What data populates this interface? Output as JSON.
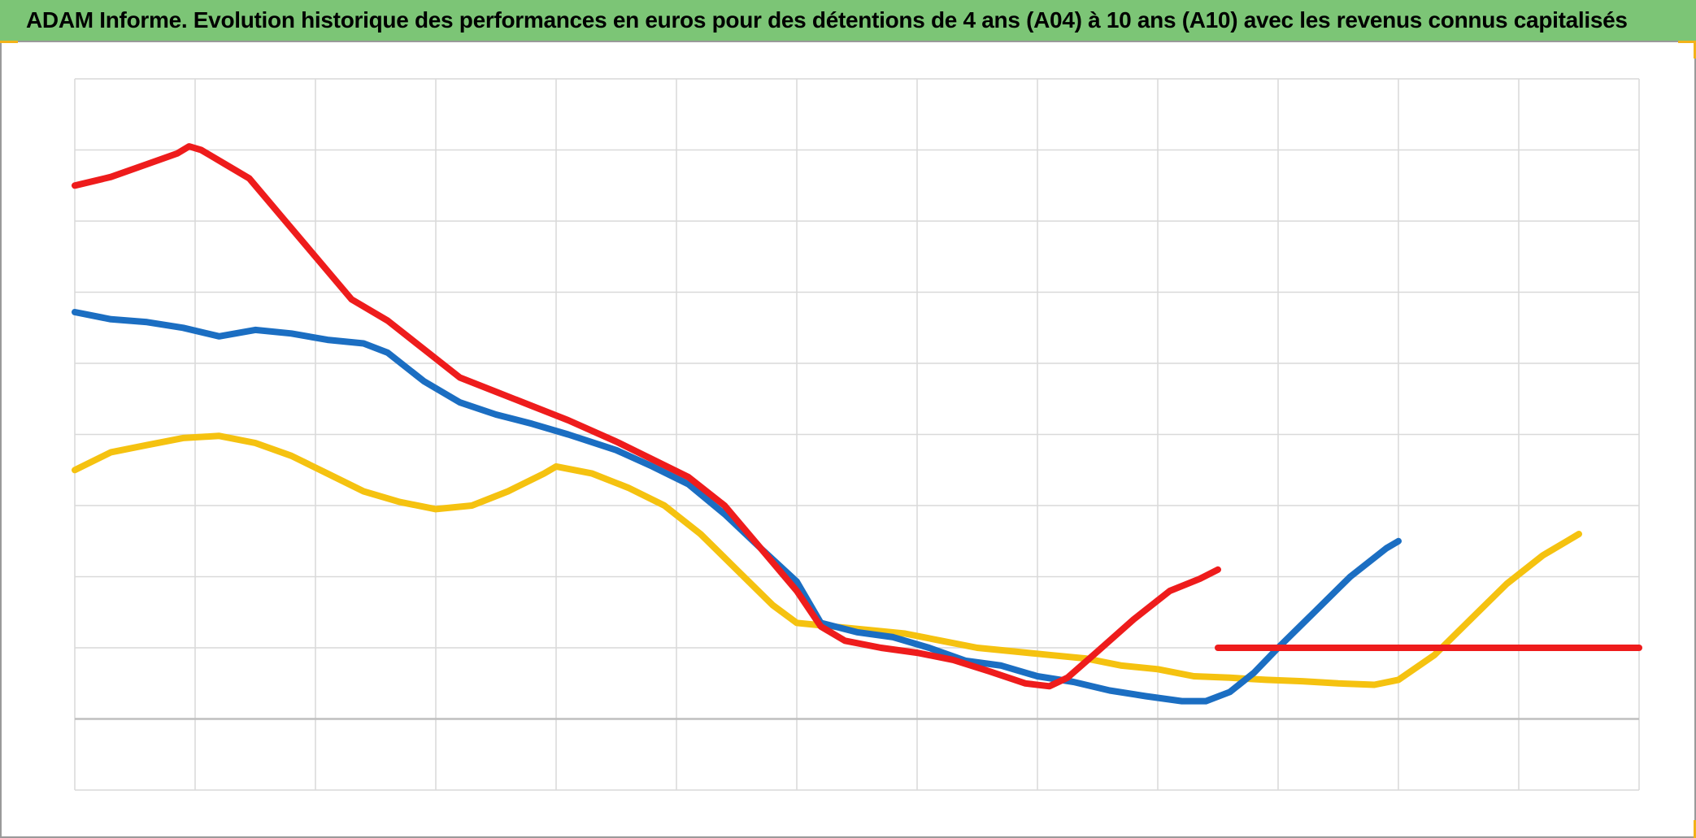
{
  "title": "ADAM Informe. Evolution historique des performances en euros pour des détentions de 4 ans (A04) à 10 ans (A10) avec les revenus connus capitalisés",
  "colors": {
    "title_bg": "#7cc576",
    "corner_accent": "#f2b21a",
    "grid": "#d9d9d9",
    "baseline": "#bfbfbf"
  },
  "chart_data": {
    "type": "line",
    "title": "ADAM Informe. Evolution historique des performances en euros pour des détentions de 4 ans (A04) à 10 ans (A10) avec les revenus connus capitalisés",
    "xlabel": "",
    "ylabel": "",
    "xlim": [
      0,
      13
    ],
    "ylim": [
      -1,
      9
    ],
    "baseline_y": 0,
    "grid": true,
    "tick_labels_visible": false,
    "legend": "none",
    "series": [
      {
        "color": "#ee1c1c",
        "points": [
          [
            0,
            7.5
          ],
          [
            0.3,
            7.62
          ],
          [
            0.6,
            7.8
          ],
          [
            0.85,
            7.95
          ],
          [
            0.95,
            8.05
          ],
          [
            1.05,
            8.0
          ],
          [
            1.25,
            7.8
          ],
          [
            1.45,
            7.6
          ],
          [
            1.7,
            7.1
          ],
          [
            2.0,
            6.5
          ],
          [
            2.3,
            5.9
          ],
          [
            2.6,
            5.6
          ],
          [
            2.9,
            5.2
          ],
          [
            3.2,
            4.8
          ],
          [
            3.5,
            4.6
          ],
          [
            3.8,
            4.4
          ],
          [
            4.1,
            4.2
          ],
          [
            4.5,
            3.9
          ],
          [
            4.8,
            3.65
          ],
          [
            5.1,
            3.4
          ],
          [
            5.4,
            3.0
          ],
          [
            5.7,
            2.4
          ],
          [
            6.0,
            1.8
          ],
          [
            6.2,
            1.3
          ],
          [
            6.4,
            1.1
          ],
          [
            6.7,
            1.0
          ],
          [
            7.0,
            0.93
          ],
          [
            7.3,
            0.83
          ],
          [
            7.6,
            0.67
          ],
          [
            7.9,
            0.5
          ],
          [
            8.1,
            0.46
          ],
          [
            8.25,
            0.58
          ],
          [
            8.5,
            0.95
          ],
          [
            8.8,
            1.4
          ],
          [
            9.1,
            1.8
          ],
          [
            9.35,
            1.97
          ],
          [
            9.5,
            2.1
          ]
        ]
      },
      {
        "color": "#1b6ec2",
        "points": [
          [
            0,
            5.72
          ],
          [
            0.3,
            5.62
          ],
          [
            0.6,
            5.58
          ],
          [
            0.9,
            5.5
          ],
          [
            1.2,
            5.38
          ],
          [
            1.5,
            5.47
          ],
          [
            1.8,
            5.42
          ],
          [
            2.1,
            5.33
          ],
          [
            2.4,
            5.28
          ],
          [
            2.6,
            5.15
          ],
          [
            2.9,
            4.75
          ],
          [
            3.2,
            4.45
          ],
          [
            3.5,
            4.28
          ],
          [
            3.8,
            4.15
          ],
          [
            4.1,
            4.0
          ],
          [
            4.5,
            3.78
          ],
          [
            4.8,
            3.55
          ],
          [
            5.1,
            3.3
          ],
          [
            5.4,
            2.88
          ],
          [
            5.7,
            2.4
          ],
          [
            6.0,
            1.93
          ],
          [
            6.2,
            1.35
          ],
          [
            6.5,
            1.22
          ],
          [
            6.8,
            1.15
          ],
          [
            7.1,
            1.0
          ],
          [
            7.4,
            0.82
          ],
          [
            7.7,
            0.75
          ],
          [
            8.0,
            0.6
          ],
          [
            8.3,
            0.52
          ],
          [
            8.6,
            0.4
          ],
          [
            8.9,
            0.32
          ],
          [
            9.2,
            0.25
          ],
          [
            9.4,
            0.25
          ],
          [
            9.6,
            0.38
          ],
          [
            9.8,
            0.65
          ],
          [
            10.0,
            1.0
          ],
          [
            10.3,
            1.5
          ],
          [
            10.6,
            2.0
          ],
          [
            10.9,
            2.4
          ],
          [
            11.0,
            2.5
          ]
        ]
      },
      {
        "color": "#f5c210",
        "points": [
          [
            0,
            3.5
          ],
          [
            0.3,
            3.75
          ],
          [
            0.6,
            3.85
          ],
          [
            0.9,
            3.95
          ],
          [
            1.2,
            3.98
          ],
          [
            1.5,
            3.88
          ],
          [
            1.8,
            3.7
          ],
          [
            2.1,
            3.45
          ],
          [
            2.4,
            3.2
          ],
          [
            2.7,
            3.05
          ],
          [
            3.0,
            2.95
          ],
          [
            3.3,
            3.0
          ],
          [
            3.6,
            3.2
          ],
          [
            3.9,
            3.45
          ],
          [
            4.0,
            3.55
          ],
          [
            4.3,
            3.45
          ],
          [
            4.6,
            3.25
          ],
          [
            4.9,
            3.0
          ],
          [
            5.2,
            2.6
          ],
          [
            5.5,
            2.1
          ],
          [
            5.8,
            1.6
          ],
          [
            6.0,
            1.35
          ],
          [
            6.3,
            1.3
          ],
          [
            6.6,
            1.25
          ],
          [
            6.9,
            1.2
          ],
          [
            7.2,
            1.1
          ],
          [
            7.5,
            1.0
          ],
          [
            7.8,
            0.95
          ],
          [
            8.1,
            0.9
          ],
          [
            8.4,
            0.85
          ],
          [
            8.7,
            0.75
          ],
          [
            9.0,
            0.7
          ],
          [
            9.3,
            0.6
          ],
          [
            9.6,
            0.58
          ],
          [
            9.9,
            0.55
          ],
          [
            10.2,
            0.53
          ],
          [
            10.5,
            0.5
          ],
          [
            10.8,
            0.48
          ],
          [
            11.0,
            0.55
          ],
          [
            11.3,
            0.9
          ],
          [
            11.6,
            1.4
          ],
          [
            11.9,
            1.9
          ],
          [
            12.2,
            2.3
          ],
          [
            12.4,
            2.5
          ],
          [
            12.5,
            2.6
          ]
        ]
      },
      {
        "color": "#ee1c1c",
        "points": [
          [
            9.5,
            1.0
          ],
          [
            13.0,
            1.0
          ]
        ]
      }
    ]
  }
}
